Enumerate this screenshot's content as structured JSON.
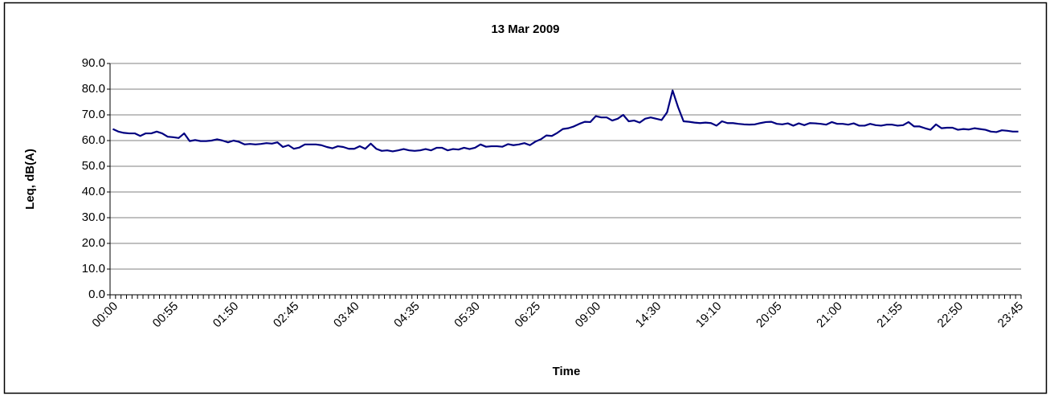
{
  "chart_data": {
    "type": "line",
    "title": "13 Mar 2009",
    "x_label": "Time",
    "y_label": "Leq, dB(A)",
    "categories": [
      "00:00",
      null,
      null,
      null,
      null,
      null,
      null,
      null,
      null,
      null,
      null,
      "00:55",
      null,
      null,
      null,
      null,
      null,
      null,
      null,
      null,
      null,
      null,
      "01:50",
      null,
      null,
      null,
      null,
      null,
      null,
      null,
      null,
      null,
      null,
      "02:45",
      null,
      null,
      null,
      null,
      null,
      null,
      null,
      null,
      null,
      null,
      "03:40",
      null,
      null,
      null,
      null,
      null,
      null,
      null,
      null,
      null,
      null,
      "04:35",
      null,
      null,
      null,
      null,
      null,
      null,
      null,
      null,
      null,
      null,
      "05:30",
      null,
      null,
      null,
      null,
      null,
      null,
      null,
      null,
      null,
      null,
      "06:25",
      null,
      null,
      null,
      null,
      null,
      null,
      null,
      null,
      null,
      null,
      "09:00",
      null,
      null,
      null,
      null,
      null,
      null,
      null,
      null,
      null,
      null,
      "14:30",
      null,
      null,
      null,
      null,
      null,
      null,
      null,
      null,
      null,
      null,
      "19:10",
      null,
      null,
      null,
      null,
      null,
      null,
      null,
      null,
      null,
      null,
      "20:05",
      null,
      null,
      null,
      null,
      null,
      null,
      null,
      null,
      null,
      null,
      "21:00",
      null,
      null,
      null,
      null,
      null,
      null,
      null,
      null,
      null,
      null,
      "21:55",
      null,
      null,
      null,
      null,
      null,
      null,
      null,
      null,
      null,
      null,
      "22:50",
      null,
      null,
      null,
      null,
      null,
      null,
      null,
      null,
      null,
      null,
      "23:45"
    ],
    "series": [
      {
        "color": "#000080",
        "values": [
          64.5,
          63.5,
          63.0,
          62.8,
          62.8,
          61.8,
          62.8,
          62.8,
          63.5,
          62.8,
          61.5,
          61.3,
          61.0,
          62.8,
          59.8,
          60.2,
          59.8,
          59.8,
          60.0,
          60.5,
          60.0,
          59.3,
          60.0,
          59.5,
          58.5,
          58.7,
          58.5,
          58.7,
          59.0,
          58.8,
          59.3,
          57.5,
          58.2,
          56.8,
          57.3,
          58.5,
          58.5,
          58.5,
          58.2,
          57.5,
          57.0,
          57.8,
          57.5,
          56.8,
          56.8,
          57.8,
          56.8,
          58.8,
          56.8,
          56.0,
          56.2,
          55.8,
          56.2,
          56.7,
          56.2,
          56.0,
          56.2,
          56.7,
          56.2,
          57.2,
          57.2,
          56.2,
          56.7,
          56.5,
          57.2,
          56.7,
          57.2,
          58.5,
          57.6,
          57.8,
          57.8,
          57.6,
          58.6,
          58.2,
          58.5,
          59.0,
          58.2,
          59.6,
          60.5,
          62.0,
          61.8,
          63.0,
          64.5,
          64.8,
          65.5,
          66.5,
          67.3,
          67.2,
          69.5,
          69.0,
          69.0,
          67.8,
          68.5,
          70.0,
          67.5,
          67.8,
          67.0,
          68.5,
          69.0,
          68.5,
          68.0,
          71.0,
          79.5,
          73.0,
          67.5,
          67.3,
          67.0,
          66.8,
          67.0,
          66.8,
          65.8,
          67.5,
          66.8,
          66.8,
          66.5,
          66.3,
          66.2,
          66.3,
          66.8,
          67.2,
          67.3,
          66.5,
          66.3,
          66.7,
          65.8,
          66.7,
          66.0,
          66.8,
          66.7,
          66.5,
          66.2,
          67.2,
          66.5,
          66.5,
          66.2,
          66.7,
          65.8,
          65.8,
          66.5,
          66.0,
          65.8,
          66.2,
          66.2,
          65.8,
          66.0,
          67.2,
          65.5,
          65.5,
          64.8,
          64.2,
          66.3,
          64.8,
          65.0,
          65.0,
          64.2,
          64.5,
          64.3,
          64.8,
          64.5,
          64.2,
          63.5,
          63.3,
          64.0,
          63.8,
          63.5,
          63.5
        ]
      }
    ],
    "ylim": [
      0,
      90
    ],
    "yticks": [
      {
        "value": 0,
        "label": "0.0"
      },
      {
        "value": 10,
        "label": "10.0"
      },
      {
        "value": 20,
        "label": "20.0"
      },
      {
        "value": 30,
        "label": "30.0"
      },
      {
        "value": 40,
        "label": "40.0"
      },
      {
        "value": 50,
        "label": "50.0"
      },
      {
        "value": 60,
        "label": "60.0"
      },
      {
        "value": 70,
        "label": "70.0"
      },
      {
        "value": 80,
        "label": "80.0"
      },
      {
        "value": 90,
        "label": "90.0"
      }
    ],
    "grid": true
  }
}
